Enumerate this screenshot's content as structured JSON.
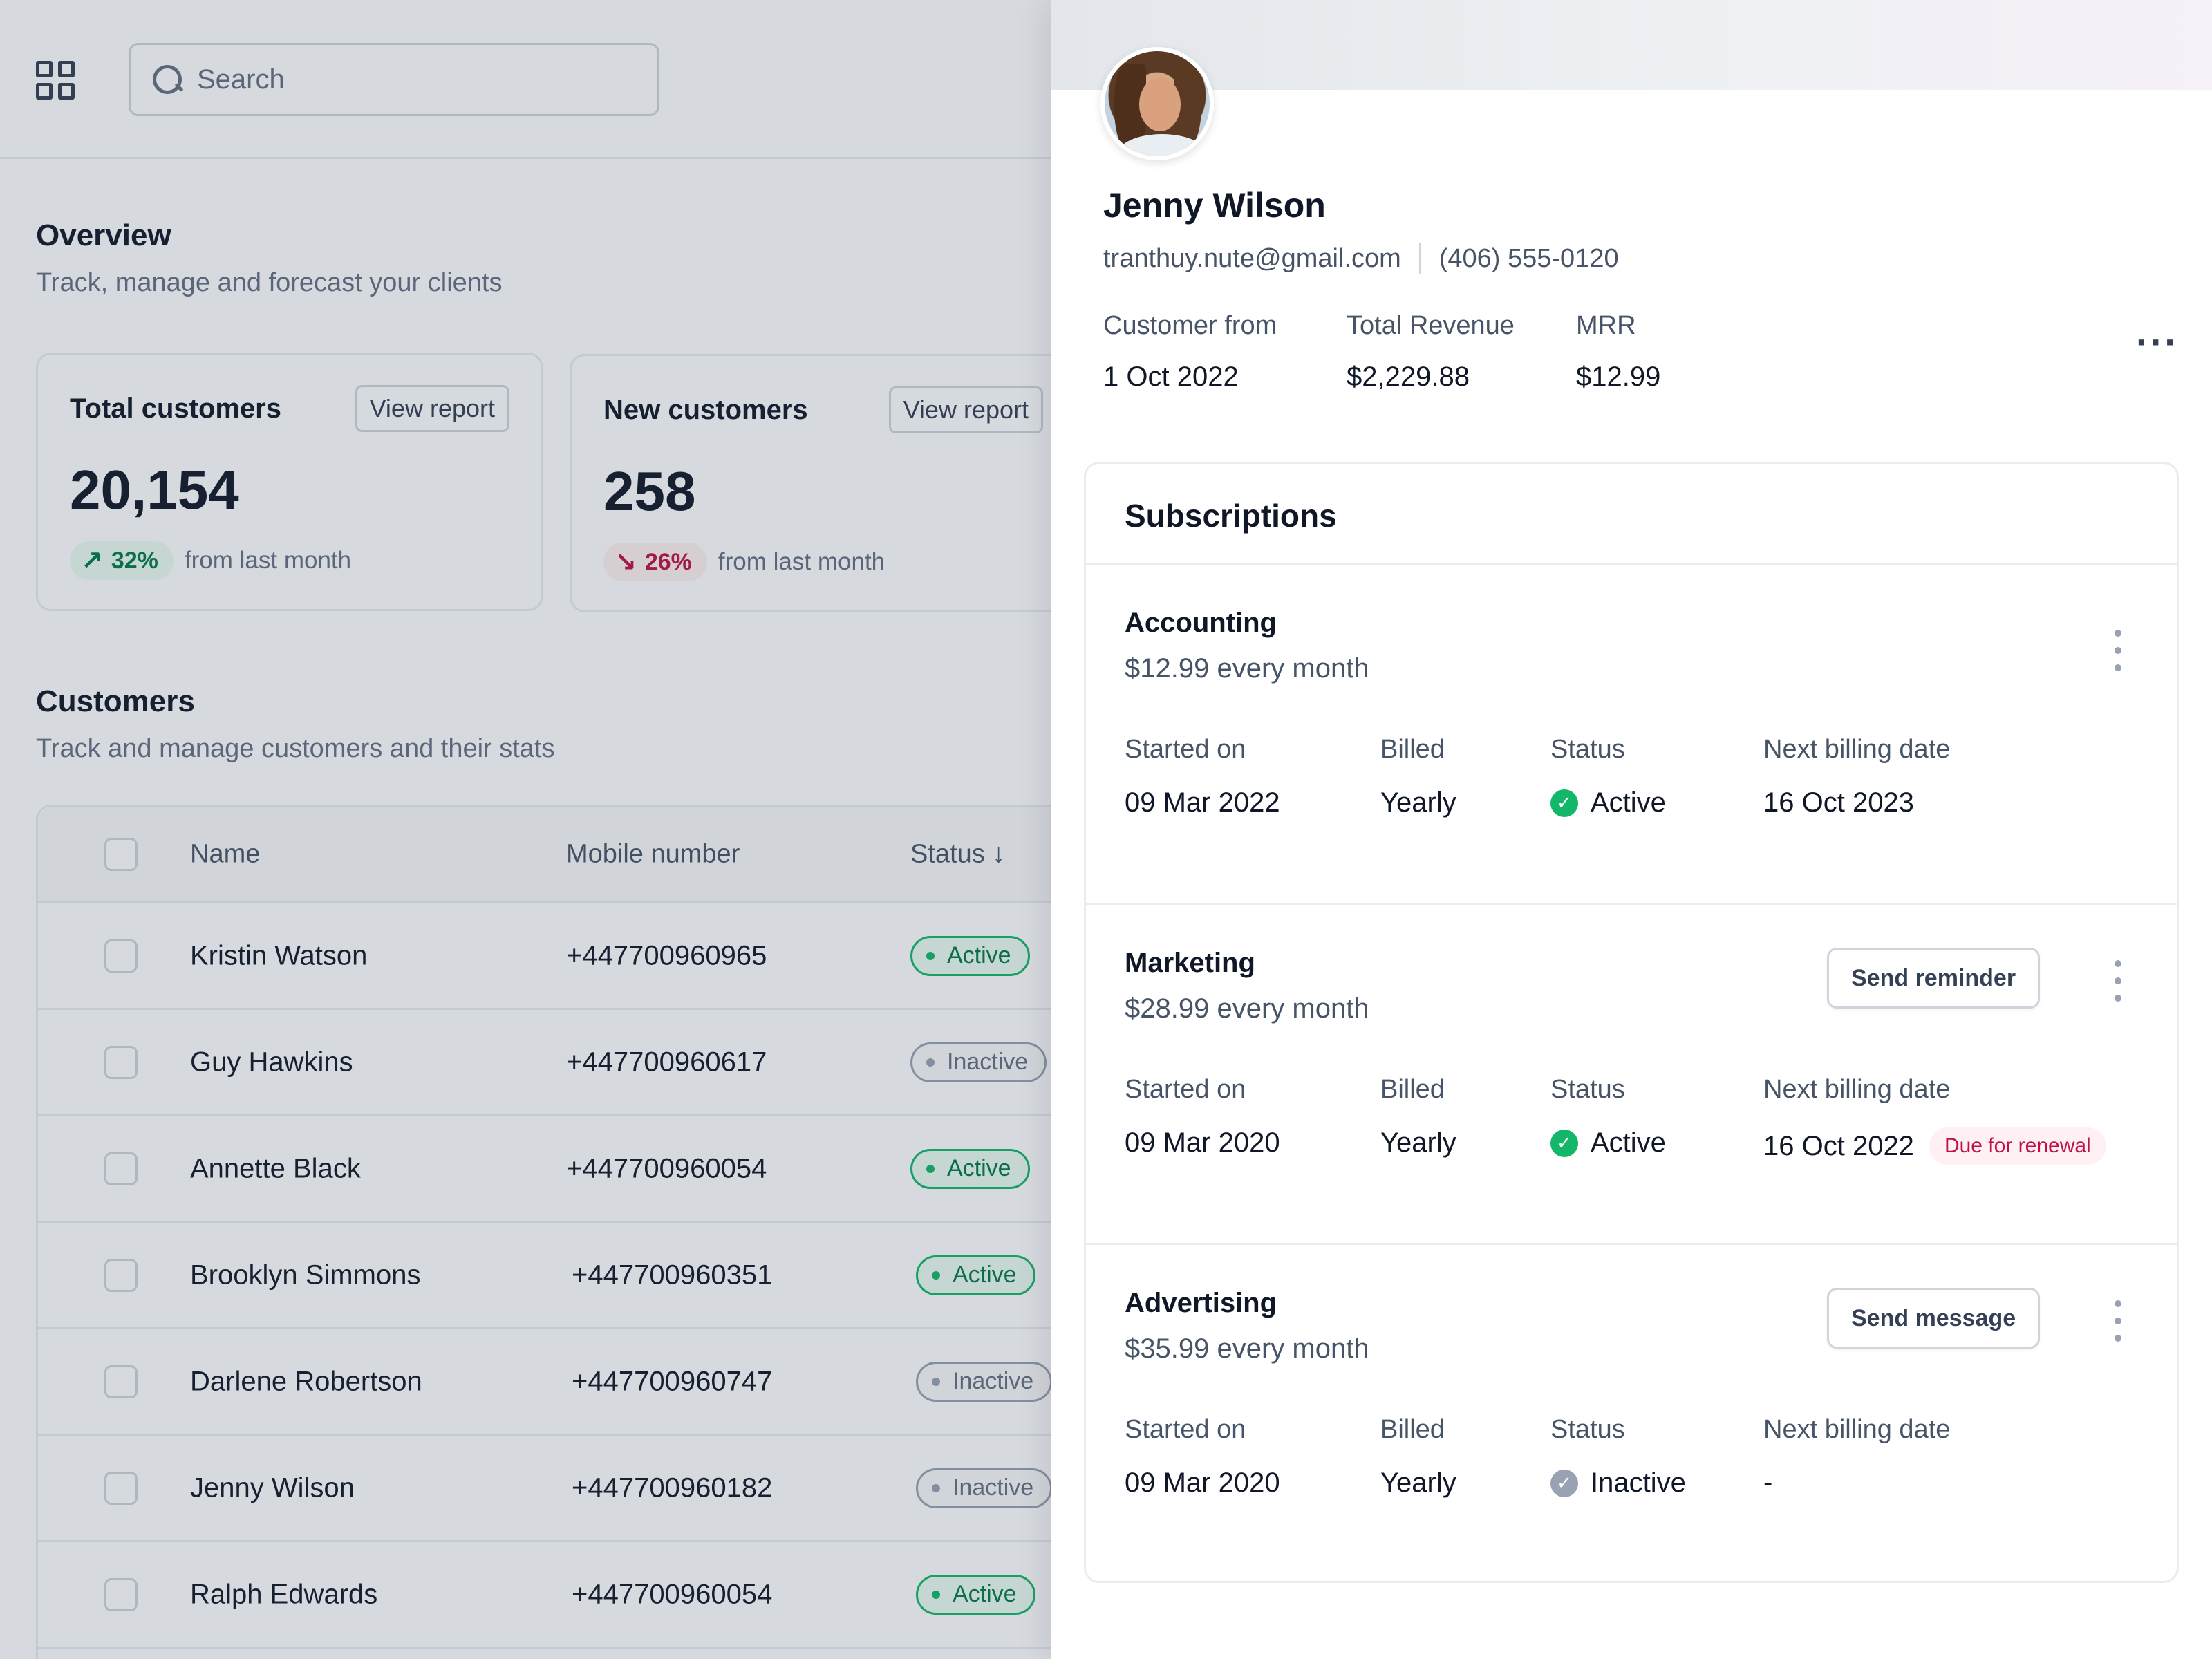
{
  "search": {
    "placeholder": "Search"
  },
  "overview": {
    "title": "Overview",
    "subtitle": "Track, manage and forecast your clients"
  },
  "cards": [
    {
      "title": "Total customers",
      "button": "View report",
      "value": "20,154",
      "trend": "32%",
      "trend_dir": "up",
      "trend_text": "from last month"
    },
    {
      "title": "New customers",
      "button": "View report",
      "value": "258",
      "trend": "26%",
      "trend_dir": "down",
      "trend_text": "from last month"
    }
  ],
  "customers": {
    "title": "Customers",
    "subtitle": "Track and manage customers and their stats",
    "columns": {
      "name": "Name",
      "mobile": "Mobile number",
      "status": "Status"
    },
    "rows": [
      {
        "name": "Kristin Watson",
        "mobile": "+447700960965",
        "status": "Active"
      },
      {
        "name": "Guy Hawkins",
        "mobile": "+447700960617",
        "status": "Inactive"
      },
      {
        "name": "Annette Black",
        "mobile": "+447700960054",
        "status": "Active"
      },
      {
        "name": "Brooklyn Simmons",
        "mobile": "+447700960351",
        "status": "Active"
      },
      {
        "name": "Darlene Robertson",
        "mobile": "+447700960747",
        "status": "Inactive"
      },
      {
        "name": "Jenny Wilson",
        "mobile": "+447700960182",
        "status": "Inactive"
      },
      {
        "name": "Ralph Edwards",
        "mobile": "+447700960054",
        "status": "Active"
      }
    ]
  },
  "profile": {
    "name": "Jenny Wilson",
    "email": "tranthuy.nute@gmail.com",
    "phone": "(406) 555-0120",
    "stats": [
      {
        "label": "Customer from",
        "value": "1 Oct 2022"
      },
      {
        "label": "Total Revenue",
        "value": "$2,229.88"
      },
      {
        "label": "MRR",
        "value": "$12.99"
      }
    ]
  },
  "subscriptions": {
    "title": "Subscriptions",
    "labels": {
      "started": "Started on",
      "billed": "Billed",
      "status": "Status",
      "next": "Next billing date"
    },
    "items": [
      {
        "name": "Accounting",
        "price": "$12.99 every month",
        "started": "09 Mar 2022",
        "billed": "Yearly",
        "status": "Active",
        "next": "16 Oct 2023",
        "action": "",
        "due": ""
      },
      {
        "name": "Marketing",
        "price": "$28.99 every month",
        "started": "09 Mar 2020",
        "billed": "Yearly",
        "status": "Active",
        "next": "16 Oct 2022",
        "action": "Send reminder",
        "due": "Due for renewal"
      },
      {
        "name": "Advertising",
        "price": "$35.99 every month",
        "started": "09 Mar 2020",
        "billed": "Yearly",
        "status": "Inactive",
        "next": "-",
        "action": "Send message",
        "due": ""
      }
    ]
  },
  "icons": {
    "grid": "grid-icon",
    "search": "search-icon",
    "more_horizontal": "more-horizontal-icon",
    "more_vertical": "more-vertical-icon",
    "check": "check-circle-icon",
    "arrow_up_right": "arrow-up-right-icon",
    "arrow_down_right": "arrow-down-right-icon",
    "sort_down": "arrow-down-icon"
  },
  "colors": {
    "success": "#12b76a",
    "danger": "#c01048",
    "muted": "#98a2b3",
    "text": "#101828"
  }
}
